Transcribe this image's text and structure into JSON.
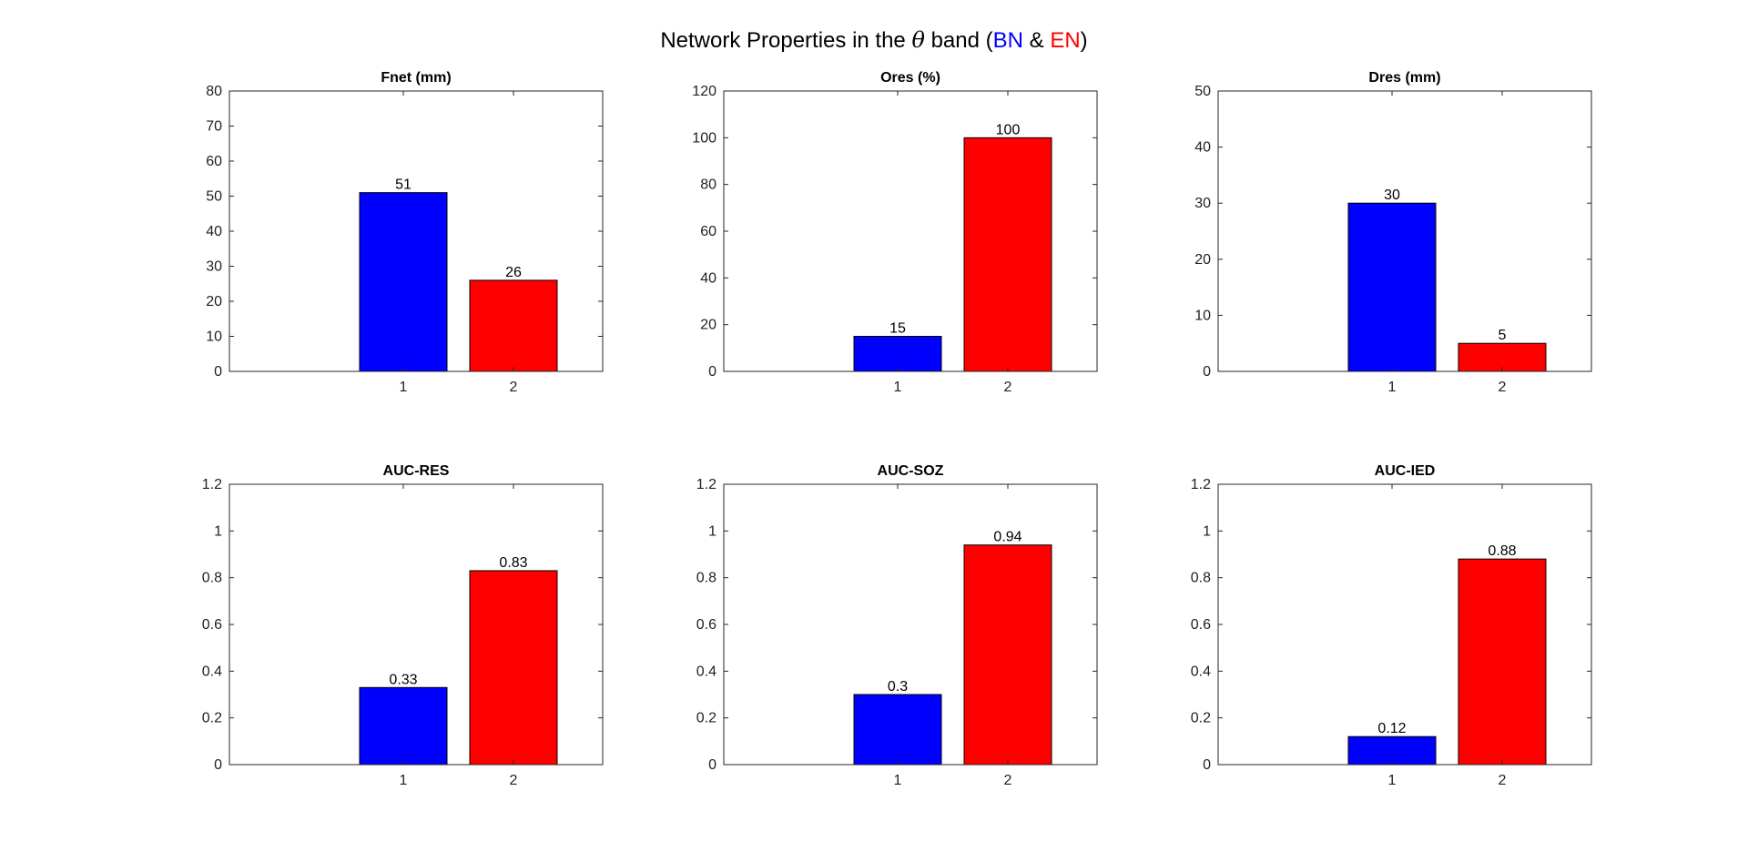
{
  "figure": {
    "title_prefix": "Network Properties in the ",
    "title_symbol": "θ",
    "title_middle": " band (",
    "series_a_label": "BN",
    "title_amp": " & ",
    "series_b_label": "EN",
    "title_suffix": ")",
    "series_a_color": "#0000FF",
    "series_b_color": "#FF0000"
  },
  "chart_data": [
    {
      "type": "bar",
      "title": "Fnet (mm)",
      "categories": [
        "1",
        "2"
      ],
      "values": [
        51,
        26
      ],
      "data_labels": [
        "51",
        "26"
      ],
      "colors": [
        "#0000FF",
        "#FF0000"
      ],
      "ylim": [
        0,
        80
      ],
      "yticks": [
        "0",
        "10",
        "20",
        "30",
        "40",
        "50",
        "60",
        "70",
        "80"
      ],
      "xlabel": "",
      "ylabel": ""
    },
    {
      "type": "bar",
      "title": "Ores (%)",
      "categories": [
        "1",
        "2"
      ],
      "values": [
        15,
        100
      ],
      "data_labels": [
        "15",
        "100"
      ],
      "colors": [
        "#0000FF",
        "#FF0000"
      ],
      "ylim": [
        0,
        120
      ],
      "yticks": [
        "0",
        "20",
        "40",
        "60",
        "80",
        "100",
        "120"
      ],
      "xlabel": "",
      "ylabel": ""
    },
    {
      "type": "bar",
      "title": "Dres (mm)",
      "categories": [
        "1",
        "2"
      ],
      "values": [
        30,
        5
      ],
      "data_labels": [
        "30",
        "5"
      ],
      "colors": [
        "#0000FF",
        "#FF0000"
      ],
      "ylim": [
        0,
        50
      ],
      "yticks": [
        "0",
        "10",
        "20",
        "30",
        "40",
        "50"
      ],
      "xlabel": "",
      "ylabel": ""
    },
    {
      "type": "bar",
      "title": "AUC-RES",
      "categories": [
        "1",
        "2"
      ],
      "values": [
        0.33,
        0.83
      ],
      "data_labels": [
        "0.33",
        "0.83"
      ],
      "colors": [
        "#0000FF",
        "#FF0000"
      ],
      "ylim": [
        0,
        1.2
      ],
      "yticks": [
        "0",
        "0.2",
        "0.4",
        "0.6",
        "0.8",
        "1",
        "1.2"
      ],
      "xlabel": "",
      "ylabel": ""
    },
    {
      "type": "bar",
      "title": "AUC-SOZ",
      "categories": [
        "1",
        "2"
      ],
      "values": [
        0.3,
        0.94
      ],
      "data_labels": [
        "0.3",
        "0.94"
      ],
      "colors": [
        "#0000FF",
        "#FF0000"
      ],
      "ylim": [
        0,
        1.2
      ],
      "yticks": [
        "0",
        "0.2",
        "0.4",
        "0.6",
        "0.8",
        "1",
        "1.2"
      ],
      "xlabel": "",
      "ylabel": ""
    },
    {
      "type": "bar",
      "title": "AUC-IED",
      "categories": [
        "1",
        "2"
      ],
      "values": [
        0.12,
        0.88
      ],
      "data_labels": [
        "0.12",
        "0.88"
      ],
      "colors": [
        "#0000FF",
        "#FF0000"
      ],
      "ylim": [
        0,
        1.2
      ],
      "yticks": [
        "0",
        "0.2",
        "0.4",
        "0.6",
        "0.8",
        "1",
        "1.2"
      ],
      "xlabel": "",
      "ylabel": ""
    }
  ]
}
